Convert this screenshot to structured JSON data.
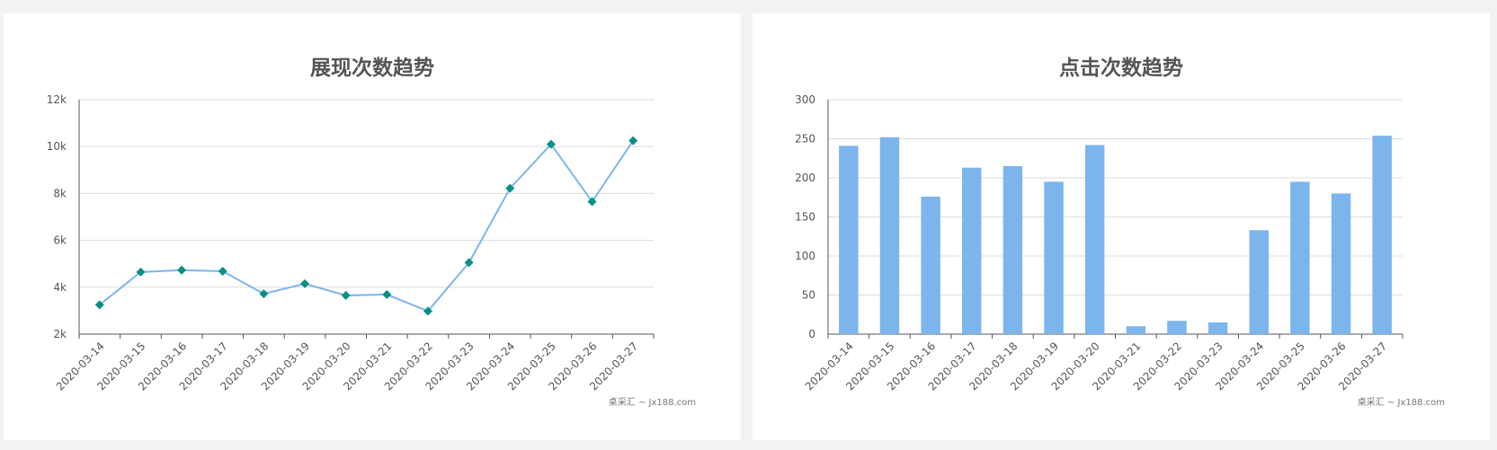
{
  "charts": {
    "credit": "桌采汇 ~ Jx188.com"
  },
  "chart_data": [
    {
      "type": "line",
      "title": "展现次数趋势",
      "categories": [
        "2020-03-14",
        "2020-03-15",
        "2020-03-16",
        "2020-03-17",
        "2020-03-18",
        "2020-03-19",
        "2020-03-20",
        "2020-03-21",
        "2020-03-22",
        "2020-03-23",
        "2020-03-24",
        "2020-03-25",
        "2020-03-26",
        "2020-03-27"
      ],
      "values": [
        3250,
        4650,
        4730,
        4680,
        3720,
        4150,
        3650,
        3690,
        2980,
        5050,
        8220,
        10100,
        7650,
        10250
      ],
      "ylim": [
        2000,
        12000
      ],
      "yticks": [
        2000,
        4000,
        6000,
        8000,
        10000,
        12000
      ],
      "ytick_labels": [
        "2k",
        "4k",
        "6k",
        "8k",
        "10k",
        "12k"
      ],
      "grid": true,
      "line_color": "#7cb5ec",
      "marker_color": "#0a8f86"
    },
    {
      "type": "bar",
      "title": "点击次数趋势",
      "categories": [
        "2020-03-14",
        "2020-03-15",
        "2020-03-16",
        "2020-03-17",
        "2020-03-18",
        "2020-03-19",
        "2020-03-20",
        "2020-03-21",
        "2020-03-22",
        "2020-03-23",
        "2020-03-24",
        "2020-03-25",
        "2020-03-26",
        "2020-03-27"
      ],
      "values": [
        241,
        252,
        176,
        213,
        215,
        195,
        242,
        10,
        17,
        15,
        133,
        195,
        180,
        254
      ],
      "ylim": [
        0,
        300
      ],
      "yticks": [
        0,
        50,
        100,
        150,
        200,
        250,
        300
      ],
      "ytick_labels": [
        "0",
        "50",
        "100",
        "150",
        "200",
        "250",
        "300"
      ],
      "grid": true,
      "bar_color": "#7cb5ec"
    }
  ]
}
